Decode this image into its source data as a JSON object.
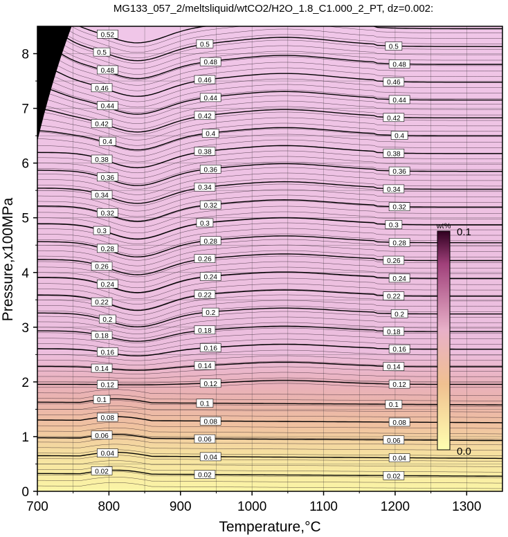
{
  "chart_data": {
    "type": "contour",
    "title": "MG133_057_2/meltsliquid/wtCO2/H2O_1.8_C1.000_2_PT, dz=0.002:",
    "xlabel": "Temperature,°C",
    "ylabel": "Pressure,x100MPa",
    "xlim": [
      700,
      1350
    ],
    "ylim": [
      0,
      8.5
    ],
    "x_ticks": [
      "700",
      "800",
      "900",
      "1000",
      "1100",
      "1200",
      "1300"
    ],
    "y_ticks": [
      "0",
      "1",
      "2",
      "3",
      "4",
      "5",
      "6",
      "7",
      "8"
    ],
    "grid": true,
    "contour_interval": 0.002,
    "labeled_levels": [
      "0.02",
      "0.04",
      "0.06",
      "0.08",
      "0.1",
      "0.12",
      "0.14",
      "0.16",
      "0.18",
      "0.2",
      "0.22",
      "0.24",
      "0.26",
      "0.28",
      "0.3",
      "0.32",
      "0.34",
      "0.36",
      "0.38",
      "0.4",
      "0.42",
      "0.44",
      "0.46",
      "0.48",
      "0.5",
      "0.52"
    ],
    "colorbar": {
      "unit": "wt%",
      "min_label": "0.0",
      "max_label": "0.1",
      "colors": [
        "#ffffb0",
        "#f0c090",
        "#e8b8c8",
        "#a0407a",
        "#300020"
      ]
    }
  }
}
